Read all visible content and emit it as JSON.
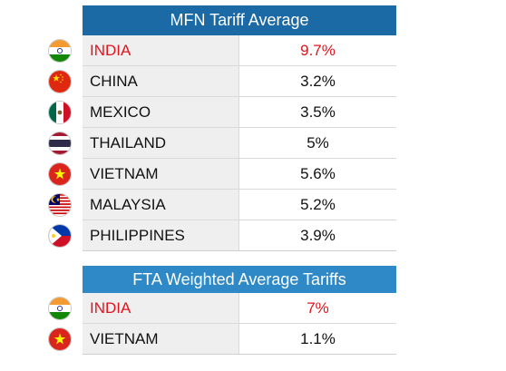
{
  "chart_data": [
    {
      "type": "table",
      "title": "MFN Tariff Average",
      "rows": [
        {
          "country": "INDIA",
          "value": "9.7%",
          "highlight": true,
          "flag": "india-flag"
        },
        {
          "country": "CHINA",
          "value": "3.2%",
          "highlight": false,
          "flag": "china-flag"
        },
        {
          "country": "MEXICO",
          "value": "3.5%",
          "highlight": false,
          "flag": "mexico-flag"
        },
        {
          "country": "THAILAND",
          "value": "5%",
          "highlight": false,
          "flag": "thailand-flag"
        },
        {
          "country": "VIETNAM",
          "value": "5.6%",
          "highlight": false,
          "flag": "vietnam-flag"
        },
        {
          "country": "MALAYSIA",
          "value": "5.2%",
          "highlight": false,
          "flag": "malaysia-flag"
        },
        {
          "country": "PHILIPPINES",
          "value": "3.9%",
          "highlight": false,
          "flag": "philippines-flag"
        }
      ]
    },
    {
      "type": "table",
      "title": "FTA Weighted Average Tariffs",
      "rows": [
        {
          "country": "INDIA",
          "value": "7%",
          "highlight": true,
          "flag": "india-flag"
        },
        {
          "country": "VIETNAM",
          "value": "1.1%",
          "highlight": false,
          "flag": "vietnam-flag"
        }
      ]
    }
  ],
  "colors": {
    "mfn_header": "#1b6aa6",
    "fta_header": "#2e89c6",
    "highlight_text": "#e0141e",
    "name_cell_bg": "#efefef"
  }
}
